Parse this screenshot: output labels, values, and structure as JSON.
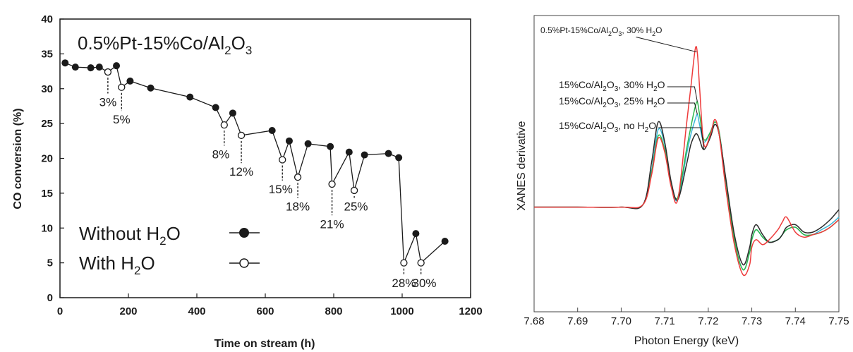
{
  "chart_data": [
    {
      "type": "line",
      "title_parts": [
        "0.5%Pt-15%Co/Al",
        "2",
        "O",
        "3"
      ],
      "xlabel": "Time on stream (h)",
      "ylabel": "CO conversion (%)",
      "xlim": [
        0,
        1200
      ],
      "ylim": [
        0,
        40
      ],
      "x_ticks": [
        "0",
        "200",
        "400",
        "600",
        "800",
        "1000",
        "1200"
      ],
      "y_ticks": [
        "0",
        "5",
        "10",
        "15",
        "20",
        "25",
        "30",
        "35",
        "40"
      ],
      "legend": {
        "placement": "bottom-left",
        "entries": [
          {
            "text": "Without H",
            "sub": "2",
            "tail": "O",
            "marker": "filled"
          },
          {
            "text": "With H",
            "sub": "2",
            "tail": "O",
            "marker": "open"
          }
        ]
      },
      "series": [
        {
          "name": "Without H2O",
          "marker": "filled",
          "points": [
            [
              15,
              33.7
            ],
            [
              45,
              33.1
            ],
            [
              90,
              33.0
            ],
            [
              115,
              33.1
            ],
            [
              165,
              33.3
            ],
            [
              205,
              31.1
            ],
            [
              265,
              30.1
            ],
            [
              380,
              28.8
            ],
            [
              455,
              27.3
            ],
            [
              505,
              26.5
            ],
            [
              620,
              24.0
            ],
            [
              670,
              22.5
            ],
            [
              725,
              22.1
            ],
            [
              790,
              21.7
            ],
            [
              845,
              20.9
            ],
            [
              890,
              20.5
            ],
            [
              960,
              20.7
            ],
            [
              990,
              20.1
            ],
            [
              1040,
              9.2
            ],
            [
              1125,
              8.1
            ]
          ]
        },
        {
          "name": "With H2O",
          "marker": "open",
          "points": [
            [
              140,
              32.4
            ],
            [
              180,
              30.2
            ],
            [
              480,
              24.8
            ],
            [
              530,
              23.3
            ],
            [
              650,
              19.8
            ],
            [
              695,
              17.3
            ],
            [
              795,
              16.3
            ],
            [
              860,
              15.4
            ],
            [
              1005,
              5.0
            ],
            [
              1055,
              5.0
            ]
          ]
        }
      ],
      "connection_order": [
        [
          15,
          33.7
        ],
        [
          45,
          33.1
        ],
        [
          90,
          33.0
        ],
        [
          115,
          33.1
        ],
        [
          140,
          32.4
        ],
        [
          165,
          33.3
        ],
        [
          180,
          30.2
        ],
        [
          205,
          31.1
        ],
        [
          265,
          30.1
        ],
        [
          380,
          28.8
        ],
        [
          455,
          27.3
        ],
        [
          480,
          24.8
        ],
        [
          505,
          26.5
        ],
        [
          530,
          23.3
        ],
        [
          620,
          24.0
        ],
        [
          650,
          19.8
        ],
        [
          670,
          22.5
        ],
        [
          695,
          17.3
        ],
        [
          725,
          22.1
        ],
        [
          790,
          21.7
        ],
        [
          795,
          16.3
        ],
        [
          845,
          20.9
        ],
        [
          860,
          15.4
        ],
        [
          890,
          20.5
        ],
        [
          960,
          20.7
        ],
        [
          990,
          20.1
        ],
        [
          1005,
          5.0
        ],
        [
          1040,
          9.2
        ],
        [
          1055,
          5.0
        ],
        [
          1125,
          8.1
        ]
      ],
      "annotations": [
        {
          "text": "3%",
          "x": 140,
          "y": 27.5
        },
        {
          "text": "5%",
          "x": 180,
          "y": 25.0
        },
        {
          "text": "8%",
          "x": 470,
          "y": 20.0
        },
        {
          "text": "12%",
          "x": 530,
          "y": 17.5
        },
        {
          "text": "15%",
          "x": 645,
          "y": 15.0
        },
        {
          "text": "18%",
          "x": 695,
          "y": 12.5
        },
        {
          "text": "21%",
          "x": 795,
          "y": 10.0
        },
        {
          "text": "25%",
          "x": 865,
          "y": 12.5
        },
        {
          "text": "28%",
          "x": 1005,
          "y": 1.5
        },
        {
          "text": "30%",
          "x": 1065,
          "y": 1.5
        }
      ]
    },
    {
      "type": "line",
      "xlabel": "Photon Energy (keV)",
      "ylabel": "XANES derivative",
      "xlim": [
        7.68,
        7.75
      ],
      "x_ticks": [
        "7.68",
        "7.69",
        "7.70",
        "7.71",
        "7.72",
        "7.73",
        "7.74",
        "7.75"
      ],
      "series": [
        {
          "name": "0.5%Pt-15%Co/Al2O3, 30% H2O",
          "color": "#ee3b3b",
          "x": [
            7.68,
            7.69,
            7.7,
            7.705,
            7.707,
            7.7085,
            7.71,
            7.7115,
            7.713,
            7.715,
            7.716,
            7.717,
            7.7175,
            7.718,
            7.719,
            7.7205,
            7.7215,
            7.7225,
            7.724,
            7.726,
            7.728,
            7.7295,
            7.73,
            7.731,
            7.7325,
            7.734,
            7.736,
            7.737,
            7.738,
            7.74,
            7.742,
            7.744,
            7.746,
            7.748,
            7.75
          ],
          "y": [
            0.37,
            0.37,
            0.37,
            0.38,
            0.5,
            0.645,
            0.59,
            0.45,
            0.4,
            0.7,
            0.85,
            1.0,
            0.985,
            0.85,
            0.62,
            0.66,
            0.72,
            0.66,
            0.45,
            0.22,
            0.1,
            0.14,
            0.21,
            0.24,
            0.22,
            0.24,
            0.28,
            0.31,
            0.33,
            0.27,
            0.25,
            0.26,
            0.27,
            0.29,
            0.32
          ]
        },
        {
          "name": "15%Co/Al2O3, 30% H2O",
          "color": "#2db84d",
          "x": [
            7.68,
            7.69,
            7.7,
            7.705,
            7.707,
            7.7085,
            7.71,
            7.7115,
            7.713,
            7.715,
            7.716,
            7.717,
            7.7175,
            7.718,
            7.719,
            7.7205,
            7.7215,
            7.7225,
            7.724,
            7.726,
            7.728,
            7.7295,
            7.73,
            7.731,
            7.7325,
            7.734,
            7.736,
            7.737,
            7.738,
            7.74,
            7.742,
            7.744,
            7.746,
            7.748,
            7.75
          ],
          "y": [
            0.37,
            0.37,
            0.37,
            0.38,
            0.51,
            0.655,
            0.6,
            0.46,
            0.41,
            0.6,
            0.69,
            0.77,
            0.79,
            0.74,
            0.64,
            0.67,
            0.71,
            0.67,
            0.48,
            0.24,
            0.12,
            0.19,
            0.24,
            0.28,
            0.25,
            0.23,
            0.24,
            0.26,
            0.28,
            0.29,
            0.26,
            0.26,
            0.27,
            0.29,
            0.32
          ]
        },
        {
          "name": "15%Co/Al2O3, 25% H2O",
          "color": "#3cb7d6",
          "x": [
            7.68,
            7.69,
            7.7,
            7.705,
            7.707,
            7.7085,
            7.71,
            7.7115,
            7.713,
            7.715,
            7.716,
            7.717,
            7.7175,
            7.718,
            7.719,
            7.7205,
            7.7215,
            7.7225,
            7.724,
            7.726,
            7.728,
            7.7295,
            7.73,
            7.731,
            7.7325,
            7.734,
            7.736,
            7.737,
            7.738,
            7.74,
            7.742,
            7.744,
            7.746,
            7.748,
            7.75
          ],
          "y": [
            0.37,
            0.37,
            0.37,
            0.38,
            0.52,
            0.68,
            0.62,
            0.46,
            0.4,
            0.58,
            0.66,
            0.72,
            0.74,
            0.7,
            0.63,
            0.67,
            0.71,
            0.67,
            0.48,
            0.24,
            0.12,
            0.19,
            0.24,
            0.28,
            0.25,
            0.23,
            0.24,
            0.26,
            0.28,
            0.29,
            0.26,
            0.26,
            0.28,
            0.3,
            0.33
          ]
        },
        {
          "name": "15%Co/Al2O3, no H2O",
          "color": "#2b2b2b",
          "x": [
            7.68,
            7.69,
            7.7,
            7.705,
            7.707,
            7.7085,
            7.71,
            7.7115,
            7.713,
            7.715,
            7.716,
            7.717,
            7.7175,
            7.718,
            7.719,
            7.7205,
            7.7215,
            7.7225,
            7.724,
            7.726,
            7.728,
            7.7295,
            7.73,
            7.731,
            7.7325,
            7.734,
            7.736,
            7.737,
            7.738,
            7.74,
            7.742,
            7.744,
            7.746,
            7.748,
            7.75
          ],
          "y": [
            0.37,
            0.37,
            0.37,
            0.38,
            0.55,
            0.71,
            0.63,
            0.47,
            0.4,
            0.54,
            0.62,
            0.66,
            0.66,
            0.64,
            0.6,
            0.65,
            0.7,
            0.66,
            0.49,
            0.26,
            0.14,
            0.21,
            0.26,
            0.3,
            0.26,
            0.23,
            0.24,
            0.26,
            0.29,
            0.3,
            0.27,
            0.27,
            0.29,
            0.32,
            0.36
          ]
        }
      ],
      "labels": [
        {
          "text": "0.5%Pt-15%Co/Al",
          "sub": "2",
          "mid": "O",
          "sub2": "3",
          "tail": ", 30% H",
          "sub3": "2",
          "end": "O",
          "points_to": [
            7.7173,
            0.99
          ]
        },
        {
          "text": "15%Co/Al",
          "sub": "2",
          "mid": "O",
          "sub2": "3",
          "tail": ", 30% H",
          "sub3": "2",
          "end": "O",
          "points_to": [
            7.7175,
            0.79
          ]
        },
        {
          "text": "15%Co/Al",
          "sub": "2",
          "mid": "O",
          "sub2": "3",
          "tail": ", 25% H",
          "sub3": "2",
          "end": "O",
          "points_to": [
            7.7175,
            0.74
          ]
        },
        {
          "text": "15%Co/Al",
          "sub": "2",
          "mid": "O",
          "sub2": "3",
          "tail": ", no H",
          "sub3": "2",
          "end": "O",
          "points_to": [
            7.719,
            0.6
          ]
        }
      ]
    }
  ]
}
